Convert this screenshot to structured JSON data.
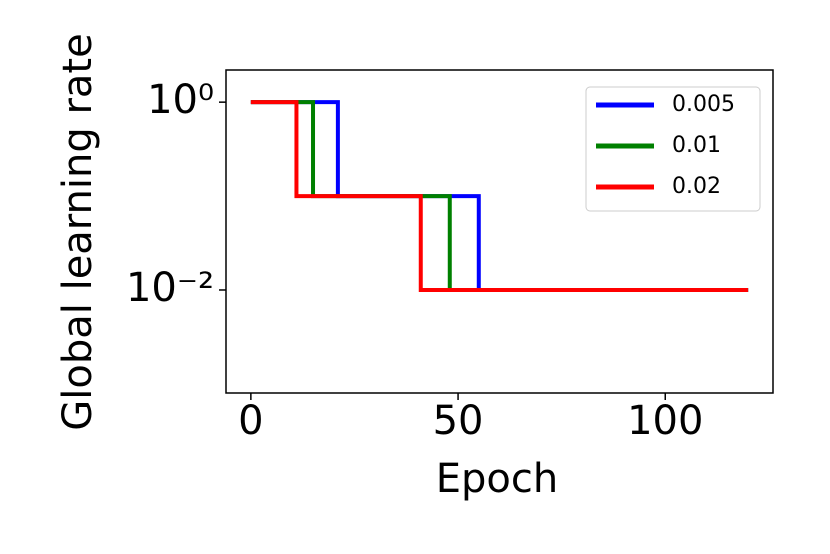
{
  "chart_data": {
    "type": "line",
    "xlabel": "Epoch",
    "ylabel": "Global learning rate",
    "xlim": [
      -6,
      126
    ],
    "xticks": [
      0,
      50,
      100
    ],
    "ylim": [
      0.0008,
      2.2
    ],
    "yscale": "log",
    "yticks": [
      {
        "value": 1,
        "label": "10⁰"
      },
      {
        "value": 0.01,
        "label": "10⁻²"
      }
    ],
    "legend": "upper right",
    "series": [
      {
        "name": "0.005",
        "color": "#0000ff",
        "x": [
          0,
          21,
          21,
          55,
          55,
          120
        ],
        "values": [
          1,
          1,
          0.1,
          0.1,
          0.01,
          0.01
        ]
      },
      {
        "name": "0.01",
        "color": "#008000",
        "x": [
          0,
          15,
          15,
          48,
          48,
          120
        ],
        "values": [
          1,
          1,
          0.1,
          0.1,
          0.01,
          0.01
        ]
      },
      {
        "name": "0.02",
        "color": "#ff0000",
        "x": [
          0,
          11,
          11,
          41,
          41,
          120
        ],
        "values": [
          1,
          1,
          0.1,
          0.1,
          0.01,
          0.01
        ]
      }
    ]
  }
}
